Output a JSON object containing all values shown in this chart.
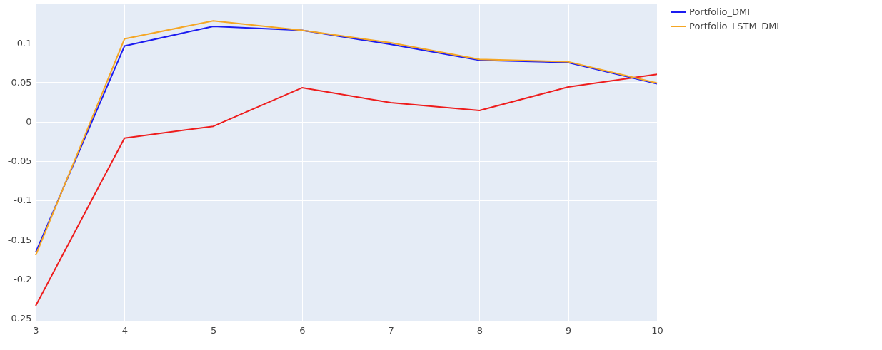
{
  "chart_data": {
    "type": "line",
    "x": [
      3,
      4,
      5,
      6,
      7,
      8,
      9,
      10
    ],
    "series": [
      {
        "color": "#ee1c1c",
        "values": [
          -0.234,
          -0.021,
          -0.006,
          0.043,
          0.024,
          0.014,
          0.044,
          0.06
        ]
      },
      {
        "name": "Portfolio_DMI",
        "color": "#1c1cf0",
        "values": [
          -0.166,
          0.096,
          0.121,
          0.116,
          0.098,
          0.078,
          0.075,
          0.048
        ]
      },
      {
        "name": "Portfolio_LSTM_DMI",
        "color": "#f5a623",
        "values": [
          -0.17,
          0.105,
          0.128,
          0.116,
          0.1,
          0.079,
          0.076,
          0.049
        ]
      }
    ],
    "xlim": [
      3,
      10
    ],
    "xticks": [
      3,
      4,
      5,
      6,
      7,
      8,
      9,
      10
    ],
    "ylim": [
      -0.254,
      0.149
    ],
    "yticks": [
      -0.25,
      -0.2,
      -0.15,
      -0.1,
      -0.05,
      0,
      0.05,
      0.1
    ],
    "grid": true,
    "legend": "top right",
    "line_style": "solid",
    "marker": "none"
  }
}
